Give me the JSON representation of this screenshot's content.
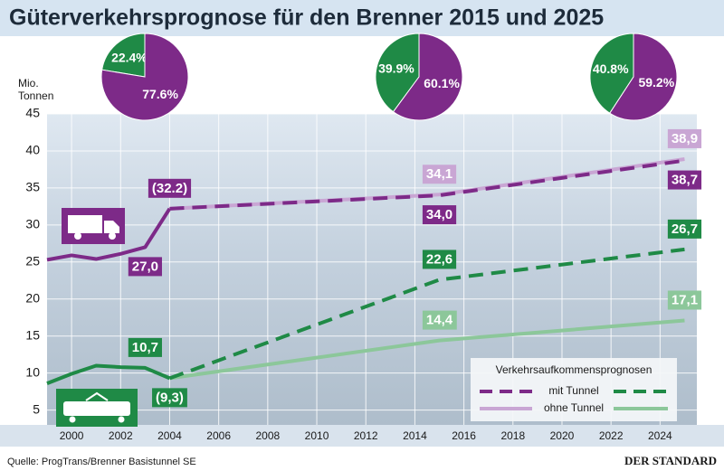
{
  "chart_data": [
    {
      "type": "line",
      "title": "Güterverkehrsprognose für den Brenner 2015 und 2025",
      "ylabel": [
        "Mio.",
        "Tonnen"
      ],
      "xlim": [
        1999,
        2025.5
      ],
      "xticks": [
        2000,
        2002,
        2004,
        2006,
        2008,
        2010,
        2012,
        2014,
        2016,
        2018,
        2020,
        2022,
        2024
      ],
      "ylim": [
        3,
        45
      ],
      "yticks": [
        5,
        10,
        15,
        20,
        25,
        30,
        35,
        40,
        45
      ],
      "grid": true,
      "series": [
        {
          "color": "#7d2a88",
          "dash": false,
          "x": [
            1999,
            2000,
            2001,
            2002,
            2003,
            2004
          ],
          "values": [
            25.3,
            25.9,
            25.4,
            26.1,
            27.0,
            32.2
          ],
          "value_labels": [
            null,
            null,
            null,
            null,
            "27,0",
            "(32.2)"
          ]
        },
        {
          "color": "#c9a6d4",
          "dash": false,
          "x": [
            2004,
            2015,
            2025
          ],
          "values": [
            32.2,
            34.1,
            38.9
          ],
          "value_labels": [
            null,
            "34,1",
            "38,9"
          ]
        },
        {
          "color": "#7d2a88",
          "dash": true,
          "x": [
            2004,
            2015,
            2025
          ],
          "values": [
            32.2,
            34.0,
            38.7
          ],
          "value_labels": [
            null,
            "34,0",
            "38,7"
          ]
        },
        {
          "color": "#1f8a46",
          "dash": false,
          "x": [
            1999,
            2000,
            2001,
            2002,
            2003,
            2004
          ],
          "values": [
            8.6,
            9.9,
            11.0,
            10.8,
            10.7,
            9.3
          ],
          "value_labels": [
            null,
            null,
            null,
            null,
            "10,7",
            "(9,3)"
          ]
        },
        {
          "color": "#8cc79a",
          "dash": false,
          "x": [
            2004,
            2015,
            2025
          ],
          "values": [
            9.3,
            14.4,
            17.1
          ],
          "value_labels": [
            null,
            "14,4",
            "17,1"
          ]
        },
        {
          "color": "#1f8a46",
          "dash": true,
          "x": [
            2004,
            2015,
            2025
          ],
          "values": [
            9.3,
            22.6,
            26.7
          ],
          "value_labels": [
            null,
            "22,6",
            "26,7"
          ]
        }
      ],
      "legend": {
        "title": "Verkehrsaufkommensprognosen",
        "entries": [
          {
            "label": "mit Tunnel",
            "colors": [
              "#7d2a88",
              "#1f8a46"
            ],
            "dash": true
          },
          {
            "label": "ohne Tunnel",
            "colors": [
              "#c9a6d4",
              "#8cc79a"
            ],
            "dash": false
          }
        ]
      },
      "source": "Quelle: ProgTrans/Brenner Basistunnel SE",
      "brand": "DER STANDARD"
    },
    {
      "type": "pie",
      "values": [
        22.4,
        77.6
      ],
      "value_labels": [
        "22.4%",
        "77.6%"
      ],
      "colors": [
        "#1f8a46",
        "#7d2a88"
      ]
    },
    {
      "type": "pie",
      "values": [
        39.9,
        60.1
      ],
      "value_labels": [
        "39.9%",
        "60.1%"
      ],
      "colors": [
        "#1f8a46",
        "#7d2a88"
      ]
    },
    {
      "type": "pie",
      "values": [
        40.8,
        59.2
      ],
      "value_labels": [
        "40.8%",
        "59.2%"
      ],
      "colors": [
        "#1f8a46",
        "#7d2a88"
      ]
    }
  ]
}
